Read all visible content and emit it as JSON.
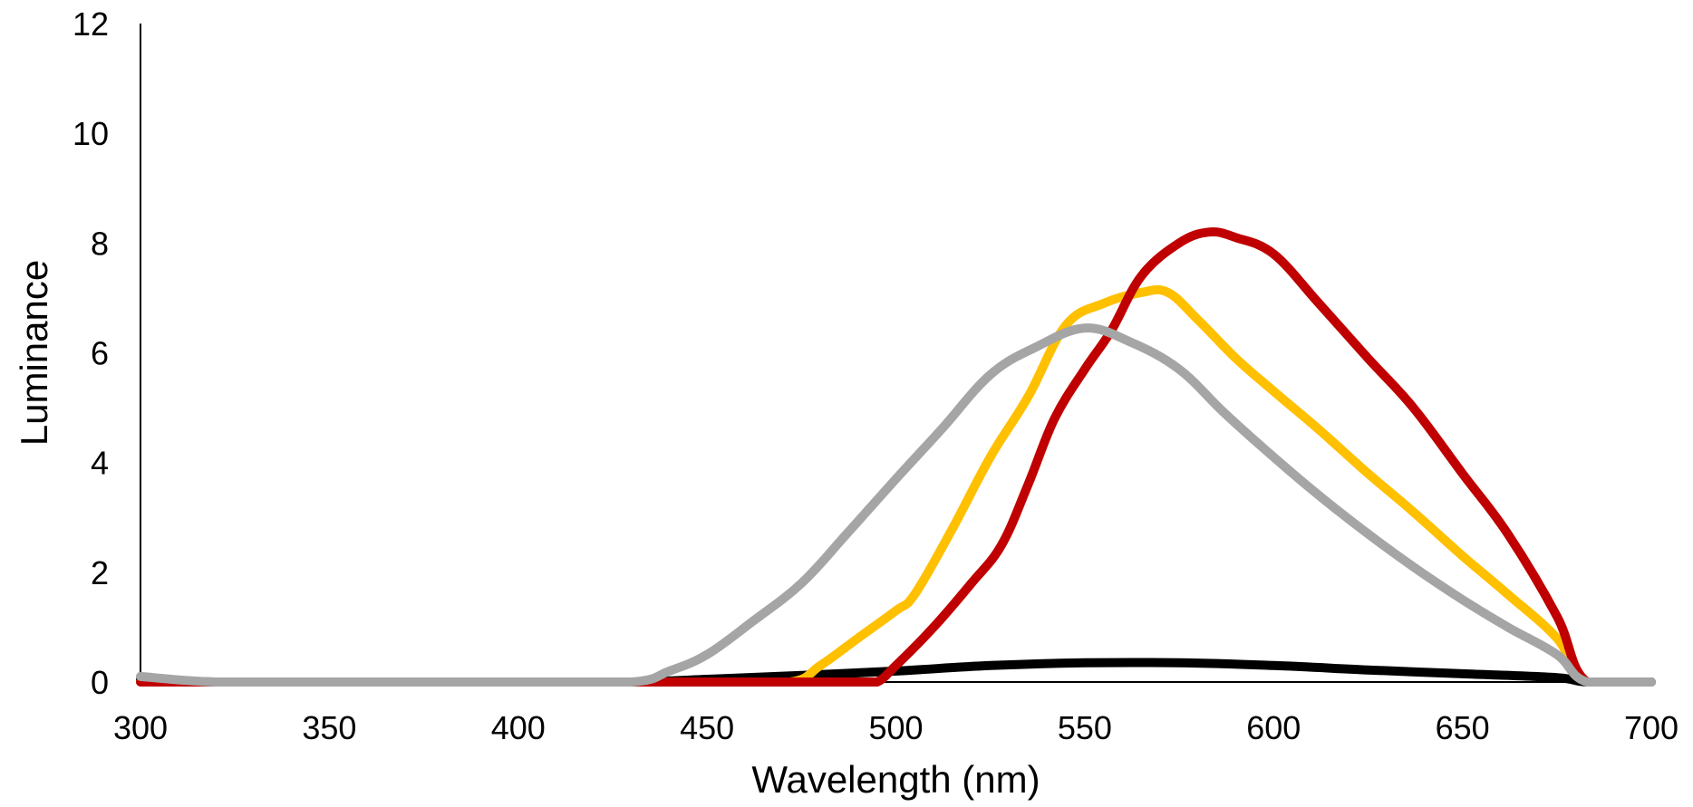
{
  "chart_data": {
    "type": "line",
    "title": "",
    "xlabel": "Wavelength (nm)",
    "ylabel": "Luminance",
    "xlim": [
      300,
      700
    ],
    "ylim": [
      0,
      12
    ],
    "x_ticks": [
      300,
      350,
      400,
      450,
      500,
      550,
      600,
      650,
      700
    ],
    "y_ticks": [
      0,
      2,
      4,
      6,
      8,
      10,
      12
    ],
    "grid": false,
    "legend": "none",
    "series": [
      {
        "color": "#000000",
        "points": [
          [
            300,
            0.05
          ],
          [
            320,
            0.0
          ],
          [
            350,
            0.0
          ],
          [
            400,
            0.0
          ],
          [
            430,
            0.0
          ],
          [
            450,
            0.05
          ],
          [
            475,
            0.12
          ],
          [
            500,
            0.2
          ],
          [
            525,
            0.3
          ],
          [
            550,
            0.35
          ],
          [
            575,
            0.35
          ],
          [
            600,
            0.3
          ],
          [
            625,
            0.22
          ],
          [
            650,
            0.15
          ],
          [
            675,
            0.08
          ],
          [
            683,
            0.0
          ],
          [
            700,
            0.0
          ]
        ]
      },
      {
        "color": "#FFC000",
        "points": [
          [
            300,
            0.0
          ],
          [
            350,
            0.0
          ],
          [
            400,
            0.0
          ],
          [
            450,
            0.0
          ],
          [
            472,
            0.0
          ],
          [
            480,
            0.3
          ],
          [
            490,
            0.8
          ],
          [
            500,
            1.3
          ],
          [
            505,
            1.6
          ],
          [
            515,
            2.8
          ],
          [
            525,
            4.1
          ],
          [
            535,
            5.2
          ],
          [
            545,
            6.5
          ],
          [
            555,
            6.9
          ],
          [
            565,
            7.1
          ],
          [
            572,
            7.1
          ],
          [
            580,
            6.6
          ],
          [
            590,
            5.9
          ],
          [
            600,
            5.3
          ],
          [
            612,
            4.6
          ],
          [
            625,
            3.8
          ],
          [
            637,
            3.1
          ],
          [
            650,
            2.3
          ],
          [
            662,
            1.6
          ],
          [
            675,
            0.8
          ],
          [
            683,
            0.0
          ],
          [
            700,
            0.0
          ]
        ]
      },
      {
        "color": "#C00000",
        "points": [
          [
            300,
            0.0
          ],
          [
            350,
            0.0
          ],
          [
            400,
            0.0
          ],
          [
            450,
            0.0
          ],
          [
            490,
            0.0
          ],
          [
            495,
            0.0
          ],
          [
            500,
            0.3
          ],
          [
            510,
            1.0
          ],
          [
            520,
            1.8
          ],
          [
            528,
            2.5
          ],
          [
            535,
            3.6
          ],
          [
            542,
            4.8
          ],
          [
            550,
            5.7
          ],
          [
            557,
            6.4
          ],
          [
            565,
            7.4
          ],
          [
            575,
            8.0
          ],
          [
            583,
            8.2
          ],
          [
            590,
            8.1
          ],
          [
            600,
            7.8
          ],
          [
            612,
            6.9
          ],
          [
            625,
            5.9
          ],
          [
            637,
            5.0
          ],
          [
            650,
            3.8
          ],
          [
            662,
            2.7
          ],
          [
            675,
            1.2
          ],
          [
            683,
            0.0
          ],
          [
            700,
            0.0
          ]
        ]
      },
      {
        "color": "#A5A5A5",
        "points": [
          [
            300,
            0.1
          ],
          [
            320,
            0.0
          ],
          [
            350,
            0.0
          ],
          [
            400,
            0.0
          ],
          [
            430,
            0.0
          ],
          [
            440,
            0.2
          ],
          [
            450,
            0.5
          ],
          [
            462,
            1.1
          ],
          [
            475,
            1.8
          ],
          [
            487,
            2.7
          ],
          [
            500,
            3.7
          ],
          [
            512,
            4.6
          ],
          [
            525,
            5.6
          ],
          [
            537,
            6.1
          ],
          [
            550,
            6.45
          ],
          [
            562,
            6.2
          ],
          [
            575,
            5.7
          ],
          [
            587,
            4.9
          ],
          [
            600,
            4.1
          ],
          [
            612,
            3.4
          ],
          [
            625,
            2.7
          ],
          [
            637,
            2.1
          ],
          [
            650,
            1.5
          ],
          [
            662,
            1.0
          ],
          [
            675,
            0.5
          ],
          [
            683,
            0.0
          ],
          [
            700,
            0.0
          ]
        ]
      }
    ]
  }
}
